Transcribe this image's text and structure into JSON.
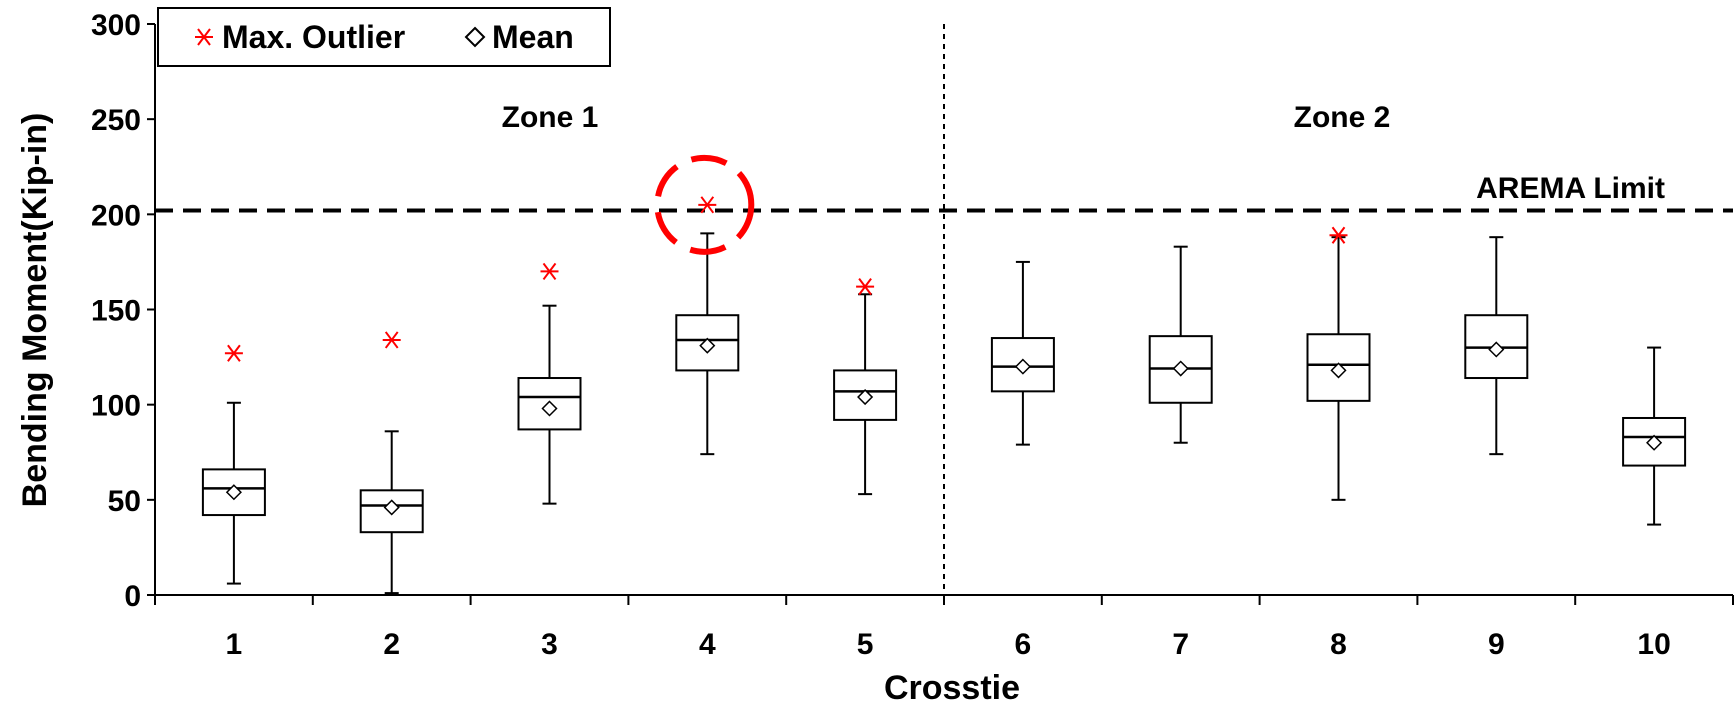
{
  "chart_data": {
    "type": "box",
    "xlabel": "Crosstie",
    "ylabel": "Bending Moment(Kip-in)",
    "ylim": [
      0,
      300
    ],
    "yticks": [
      0,
      50,
      100,
      150,
      200,
      250,
      300
    ],
    "categories": [
      "1",
      "2",
      "3",
      "4",
      "5",
      "6",
      "7",
      "8",
      "9",
      "10"
    ],
    "boxes": [
      {
        "min": 6,
        "q1": 42,
        "median": 56,
        "q3": 66,
        "max": 101,
        "mean": 54,
        "max_outlier": 127
      },
      {
        "min": 1,
        "q1": 33,
        "median": 47,
        "q3": 55,
        "max": 86,
        "mean": 46,
        "max_outlier": 134
      },
      {
        "min": 48,
        "q1": 87,
        "median": 104,
        "q3": 114,
        "max": 152,
        "mean": 98,
        "max_outlier": 170
      },
      {
        "min": 74,
        "q1": 118,
        "median": 134,
        "q3": 147,
        "max": 190,
        "mean": 131,
        "max_outlier": 205
      },
      {
        "min": 53,
        "q1": 92,
        "median": 107,
        "q3": 118,
        "max": 158,
        "mean": 104,
        "max_outlier": 162
      },
      {
        "min": 79,
        "q1": 107,
        "median": 120,
        "q3": 135,
        "max": 175,
        "mean": 120,
        "max_outlier": null
      },
      {
        "min": 80,
        "q1": 101,
        "median": 119,
        "q3": 136,
        "max": 183,
        "mean": 119,
        "max_outlier": null
      },
      {
        "min": 50,
        "q1": 102,
        "median": 121,
        "q3": 137,
        "max": 188,
        "mean": 118,
        "max_outlier": 189
      },
      {
        "min": 74,
        "q1": 114,
        "median": 130,
        "q3": 147,
        "max": 188,
        "mean": 129,
        "max_outlier": null
      },
      {
        "min": 37,
        "q1": 68,
        "median": 83,
        "q3": 93,
        "max": 130,
        "mean": 80,
        "max_outlier": null
      }
    ],
    "reference_line": {
      "label": "AREMA Limit",
      "value": 202
    },
    "zones": [
      {
        "label": "Zone 1",
        "from": "1",
        "to": "5"
      },
      {
        "label": "Zone 2",
        "from": "6",
        "to": "10"
      }
    ],
    "zone_divider_after": "5",
    "highlight": {
      "category": "4",
      "value": 205
    },
    "legend": {
      "position": "top-left",
      "entries": [
        {
          "label": "Max. Outlier",
          "marker": "asterisk",
          "color": "#ff0000"
        },
        {
          "label": "Mean",
          "marker": "diamond",
          "color": "#000000"
        }
      ]
    },
    "colors": {
      "outlier": "#ff0000",
      "highlight": "#ff0000",
      "box": "#000000",
      "mean": "#000000"
    }
  }
}
